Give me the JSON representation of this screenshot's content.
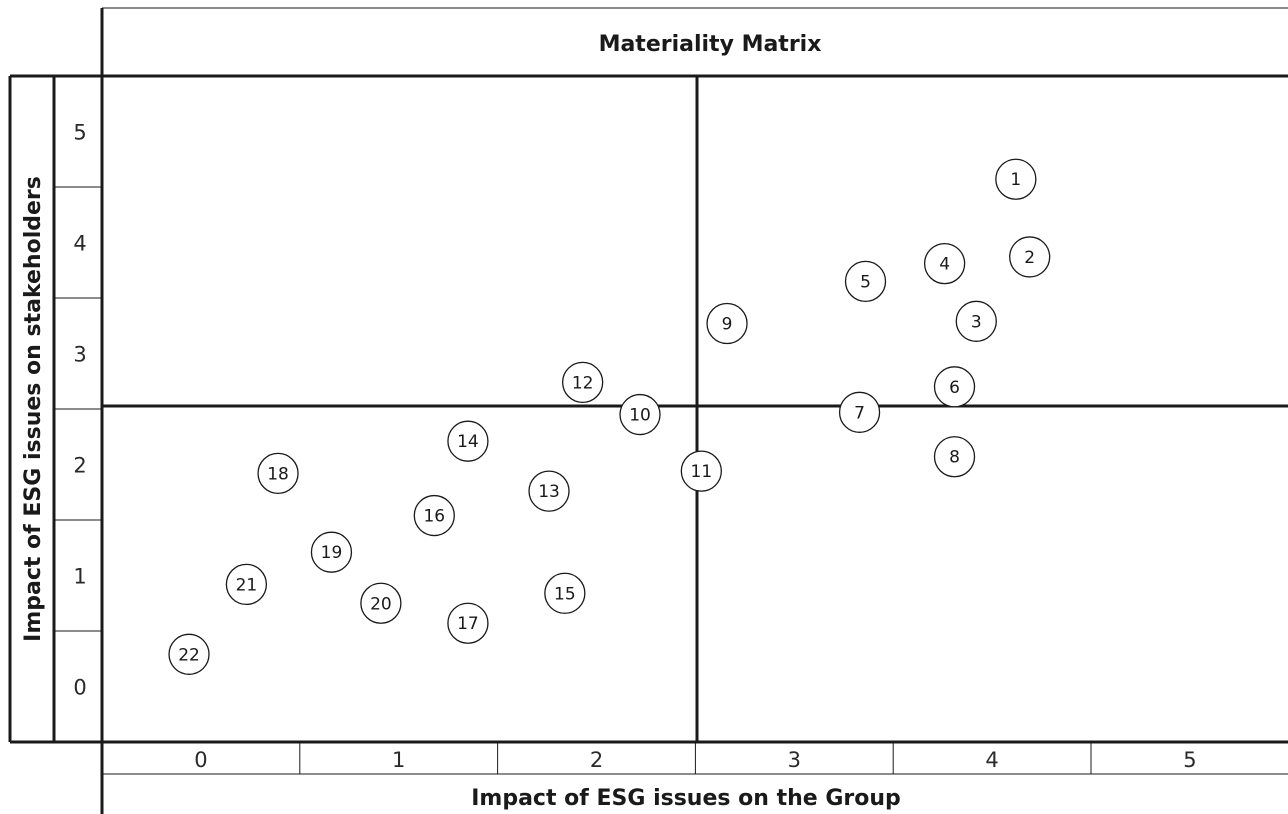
{
  "chart_data": {
    "type": "scatter",
    "title": "Materiality Matrix",
    "xlabel": "Impact of ESG issues on the Group",
    "ylabel": "Impact of ESG issues on stakeholders",
    "xlim": [
      0,
      5
    ],
    "ylim": [
      0,
      5
    ],
    "x_ticks": [
      "0",
      "1",
      "2",
      "3",
      "4",
      "5"
    ],
    "y_ticks": [
      "0",
      "1",
      "2",
      "3",
      "4",
      "5"
    ],
    "quadrant_split": {
      "x": 2.5,
      "y": 2.5
    },
    "grid": false,
    "points": [
      {
        "label": "1",
        "x": 4.62,
        "y": 5.07
      },
      {
        "label": "2",
        "x": 4.69,
        "y": 4.37
      },
      {
        "label": "3",
        "x": 4.42,
        "y": 3.79
      },
      {
        "label": "4",
        "x": 4.26,
        "y": 4.31
      },
      {
        "label": "5",
        "x": 3.86,
        "y": 4.15
      },
      {
        "label": "6",
        "x": 4.31,
        "y": 3.2
      },
      {
        "label": "7",
        "x": 3.83,
        "y": 2.97
      },
      {
        "label": "8",
        "x": 4.31,
        "y": 2.57
      },
      {
        "label": "9",
        "x": 3.16,
        "y": 3.77
      },
      {
        "label": "10",
        "x": 2.72,
        "y": 2.95
      },
      {
        "label": "11",
        "x": 3.03,
        "y": 2.44
      },
      {
        "label": "12",
        "x": 2.43,
        "y": 3.24
      },
      {
        "label": "13",
        "x": 2.26,
        "y": 2.26
      },
      {
        "label": "14",
        "x": 1.85,
        "y": 2.71
      },
      {
        "label": "15",
        "x": 2.34,
        "y": 1.34
      },
      {
        "label": "16",
        "x": 1.68,
        "y": 2.04
      },
      {
        "label": "17",
        "x": 1.85,
        "y": 1.07
      },
      {
        "label": "18",
        "x": 0.89,
        "y": 2.42
      },
      {
        "label": "19",
        "x": 1.16,
        "y": 1.71
      },
      {
        "label": "20",
        "x": 1.41,
        "y": 1.25
      },
      {
        "label": "21",
        "x": 0.73,
        "y": 1.42
      },
      {
        "label": "22",
        "x": 0.44,
        "y": 0.79
      }
    ]
  }
}
